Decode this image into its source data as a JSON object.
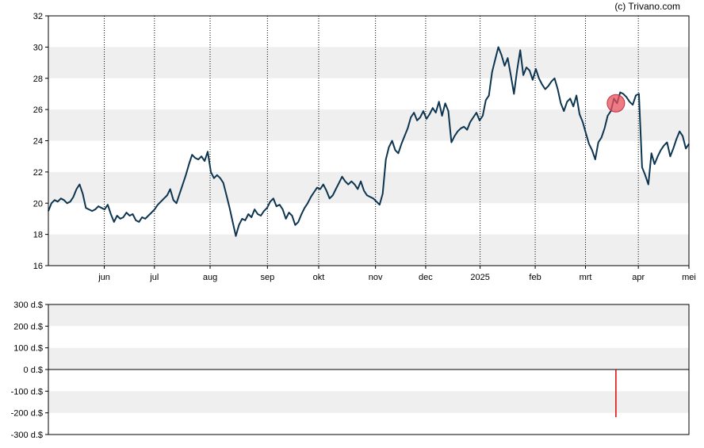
{
  "credit": "(c) Trivano.com",
  "colors": {
    "line": "#0d3550",
    "band": "#efefef",
    "marker": "#e8505b",
    "volume_bar": "#e00000"
  },
  "chart_data": [
    {
      "type": "line",
      "ylim": [
        16,
        32
      ],
      "yticks": [
        "16",
        "18",
        "20",
        "22",
        "24",
        "26",
        "28",
        "30",
        "32"
      ],
      "x_ticks": [
        {
          "label": "jun",
          "pos": 0.0873
        },
        {
          "label": "jul",
          "pos": 0.1656
        },
        {
          "label": "aug",
          "pos": 0.2525
        },
        {
          "label": "sep",
          "pos": 0.342
        },
        {
          "label": "okt",
          "pos": 0.422
        },
        {
          "label": "nov",
          "pos": 0.5107
        },
        {
          "label": "dec",
          "pos": 0.589
        },
        {
          "label": "2025",
          "pos": 0.674
        },
        {
          "label": "feb",
          "pos": 0.76
        },
        {
          "label": "mrt",
          "pos": 0.8385
        },
        {
          "label": "apr",
          "pos": 0.921
        },
        {
          "label": "mei",
          "pos": 1.0
        }
      ],
      "grid": "alternating horizontal bands, dotted vertical lines at month ticks",
      "series": [
        {
          "values": [
            19.5,
            20.0,
            20.2,
            20.1,
            20.3,
            20.2,
            20.0,
            20.1,
            20.4,
            20.9,
            21.2,
            20.6,
            19.7,
            19.6,
            19.5,
            19.6,
            19.8,
            19.7,
            19.6,
            19.9,
            19.3,
            18.8,
            19.2,
            19.0,
            19.1,
            19.4,
            19.2,
            19.3,
            18.9,
            18.8,
            19.1,
            19.0,
            19.2,
            19.4,
            19.6,
            19.9,
            20.1,
            20.3,
            20.5,
            20.9,
            20.2,
            20.0,
            20.6,
            21.2,
            21.8,
            22.5,
            23.1,
            22.9,
            22.8,
            23.0,
            22.7,
            23.3,
            22.0,
            21.6,
            21.8,
            21.6,
            21.3,
            20.5,
            19.7,
            18.8,
            17.9,
            18.6,
            19.0,
            18.9,
            19.3,
            19.1,
            19.6,
            19.3,
            19.2,
            19.5,
            19.7,
            20.1,
            20.3,
            19.8,
            19.9,
            19.6,
            19.0,
            19.4,
            19.2,
            18.6,
            18.8,
            19.3,
            19.7,
            20.0,
            20.4,
            20.7,
            21.0,
            20.9,
            21.2,
            20.8,
            20.3,
            20.5,
            20.9,
            21.3,
            21.7,
            21.4,
            21.2,
            21.4,
            21.2,
            20.9,
            21.4,
            20.8,
            20.5,
            20.4,
            20.3,
            20.1,
            19.9,
            20.6,
            22.8,
            23.6,
            24.0,
            23.4,
            23.2,
            23.8,
            24.3,
            24.8,
            25.5,
            25.8,
            25.3,
            25.5,
            25.9,
            25.4,
            25.7,
            26.1,
            25.8,
            26.5,
            25.6,
            26.4,
            25.9,
            23.9,
            24.3,
            24.6,
            24.8,
            24.9,
            24.7,
            25.2,
            25.5,
            25.8,
            25.3,
            25.6,
            26.6,
            26.9,
            28.4,
            29.2,
            30.0,
            29.5,
            28.8,
            29.3,
            28.2,
            27.0,
            28.5,
            29.8,
            28.2,
            28.7,
            28.5,
            27.9,
            28.6,
            28.0,
            27.6,
            27.3,
            27.5,
            27.8,
            28.0,
            27.3,
            26.4,
            25.9,
            26.5,
            26.7,
            26.2,
            26.9,
            25.7,
            25.2,
            24.5,
            23.8,
            23.4,
            22.8,
            23.9,
            24.2,
            24.8,
            25.6,
            25.9,
            26.7,
            26.4,
            27.1,
            27.0,
            26.8,
            26.5,
            26.3,
            26.9,
            27.0,
            22.3,
            21.8,
            21.2,
            23.2,
            22.5,
            23.0,
            23.4,
            23.7,
            23.9,
            23.0,
            23.5,
            24.1,
            24.6,
            24.3,
            23.5,
            23.8
          ]
        }
      ],
      "marker": {
        "x_pos": 0.886,
        "value": 26.4
      }
    },
    {
      "type": "bar",
      "ylim": [
        -300,
        300
      ],
      "yticks": [
        "300 d.$",
        "200 d.$",
        "100 d.$",
        "0 d.$",
        "-100 d.$",
        "-200 d.$",
        "-300 d.$"
      ],
      "bars": [
        {
          "x_pos": 0.886,
          "value": -220
        }
      ]
    }
  ]
}
